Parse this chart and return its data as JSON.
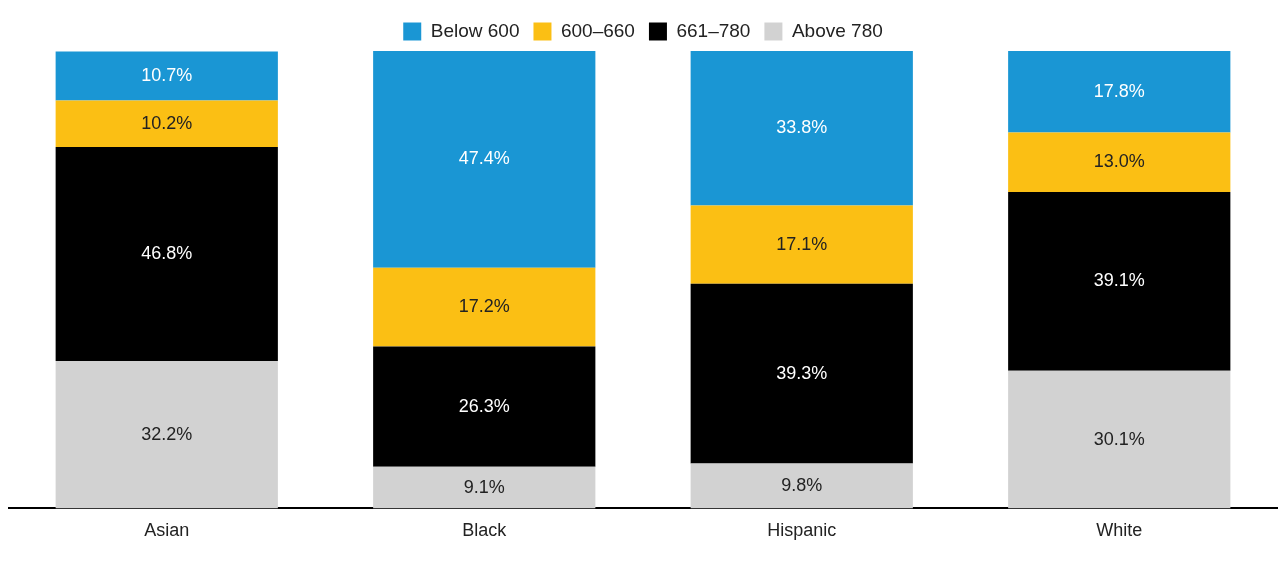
{
  "chart_data": {
    "type": "bar",
    "stacked": true,
    "legend": "top",
    "grid": false,
    "categories": [
      "Asian",
      "Black",
      "Hispanic",
      "White"
    ],
    "series": [
      {
        "name": "Above 780",
        "color": "#d2d2d2",
        "values": [
          32.2,
          9.1,
          9.8,
          30.1
        ],
        "value_labels": [
          "32.2%",
          "9.1%",
          "9.8%",
          "30.1%"
        ]
      },
      {
        "name": "661–780",
        "color": "#000000",
        "values": [
          46.8,
          26.3,
          39.3,
          39.1
        ],
        "value_labels": [
          "46.8%",
          "26.3%",
          "39.3%",
          "39.1%"
        ]
      },
      {
        "name": "600–660",
        "color": "#fbbf14",
        "values": [
          10.2,
          17.2,
          17.1,
          13.0
        ],
        "value_labels": [
          "10.2%",
          "17.2%",
          "17.1%",
          "13.0%"
        ]
      },
      {
        "name": "Below 600",
        "color": "#1a96d4",
        "values": [
          10.7,
          47.4,
          33.8,
          17.8
        ],
        "value_labels": [
          "10.7%",
          "47.4%",
          "33.8%",
          "17.8%"
        ]
      }
    ]
  }
}
